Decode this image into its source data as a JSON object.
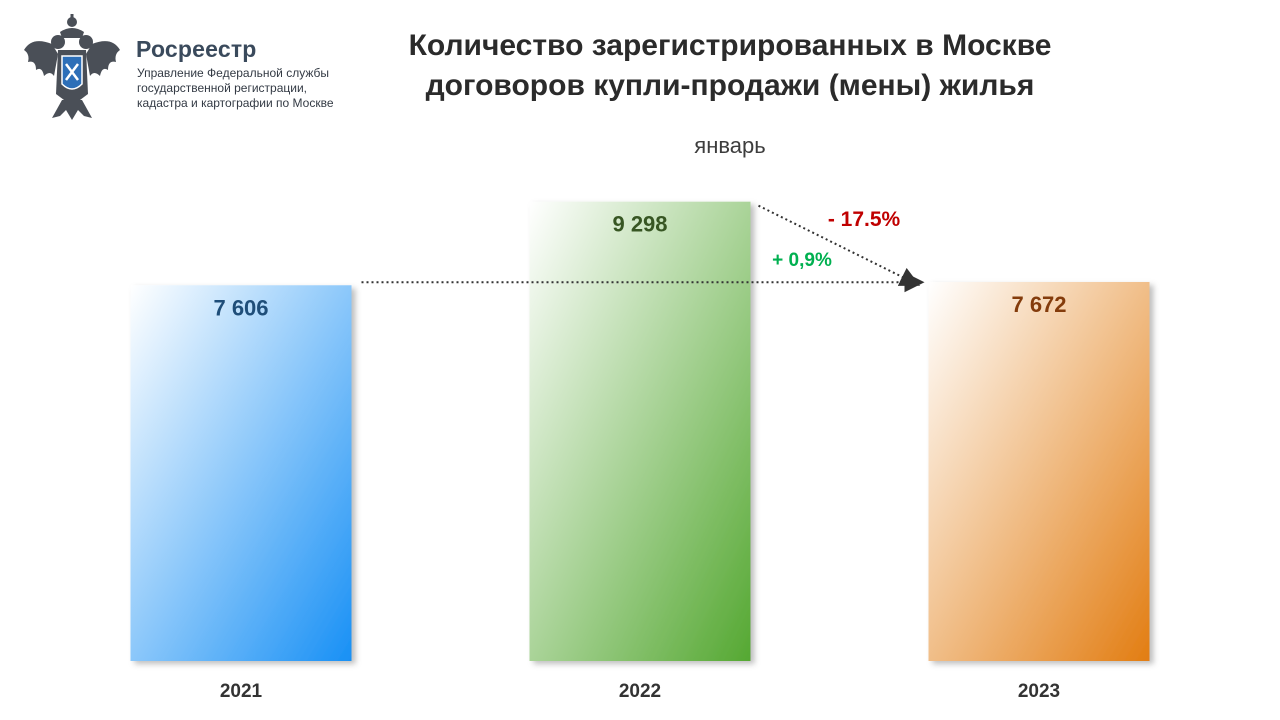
{
  "org": {
    "name": "Росреестр",
    "line1": "Управление Федеральной службы",
    "line2": "государственной регистрации,",
    "line3": "кадастра и картографии по Москве"
  },
  "header": {
    "title_line1": "Количество зарегистрированных в Москве",
    "title_line2": "договоров купли-продажи (мены) жилья"
  },
  "chart_data": {
    "type": "bar",
    "subtitle": "январь",
    "categories": [
      "2021",
      "2022",
      "2023"
    ],
    "values": [
      7606,
      9298,
      7672
    ],
    "value_labels": [
      "7 606",
      "9 298",
      "7 672"
    ],
    "annotations": {
      "change_vs_2022": "- 17.5%",
      "change_vs_2021": "+ 0,9%"
    },
    "colors": {
      "bar_2021": "#1890f5",
      "bar_2022": "#55a832",
      "bar_2023": "#e27d12",
      "label_2021": "#1f4e79",
      "label_2022": "#375623",
      "label_2023": "#843c0c",
      "change_negative": "#c00000",
      "change_positive": "#00b050"
    },
    "grid": false,
    "legend": "none"
  }
}
